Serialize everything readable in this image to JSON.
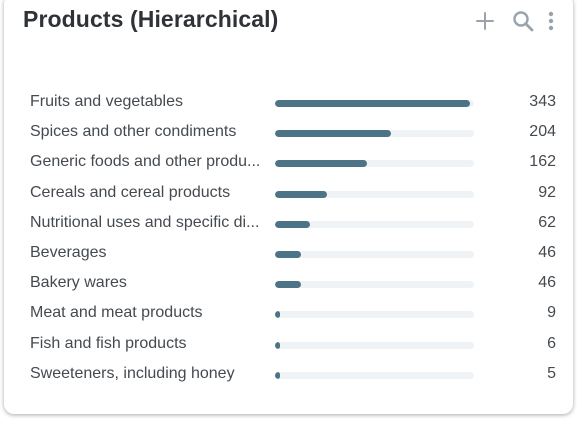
{
  "widget": {
    "title": "Products (Hierarchical)",
    "actions": {
      "add_icon": "plus-icon",
      "search_icon": "search-icon",
      "more_icon": "more-vertical-icon"
    },
    "bar_color": "#4d7386",
    "track_color": "#f0f3f6",
    "max_value": 343,
    "items": [
      {
        "label": "Fruits and vegetables",
        "value": 343
      },
      {
        "label": "Spices and other condiments",
        "value": 204
      },
      {
        "label": "Generic foods and other produ...",
        "value": 162
      },
      {
        "label": "Cereals and cereal products",
        "value": 92
      },
      {
        "label": "Nutritional uses and specific di...",
        "value": 62
      },
      {
        "label": "Beverages",
        "value": 46
      },
      {
        "label": "Bakery wares",
        "value": 46
      },
      {
        "label": "Meat and meat products",
        "value": 9
      },
      {
        "label": "Fish and fish products",
        "value": 6
      },
      {
        "label": "Sweeteners, including honey",
        "value": 5
      }
    ]
  }
}
